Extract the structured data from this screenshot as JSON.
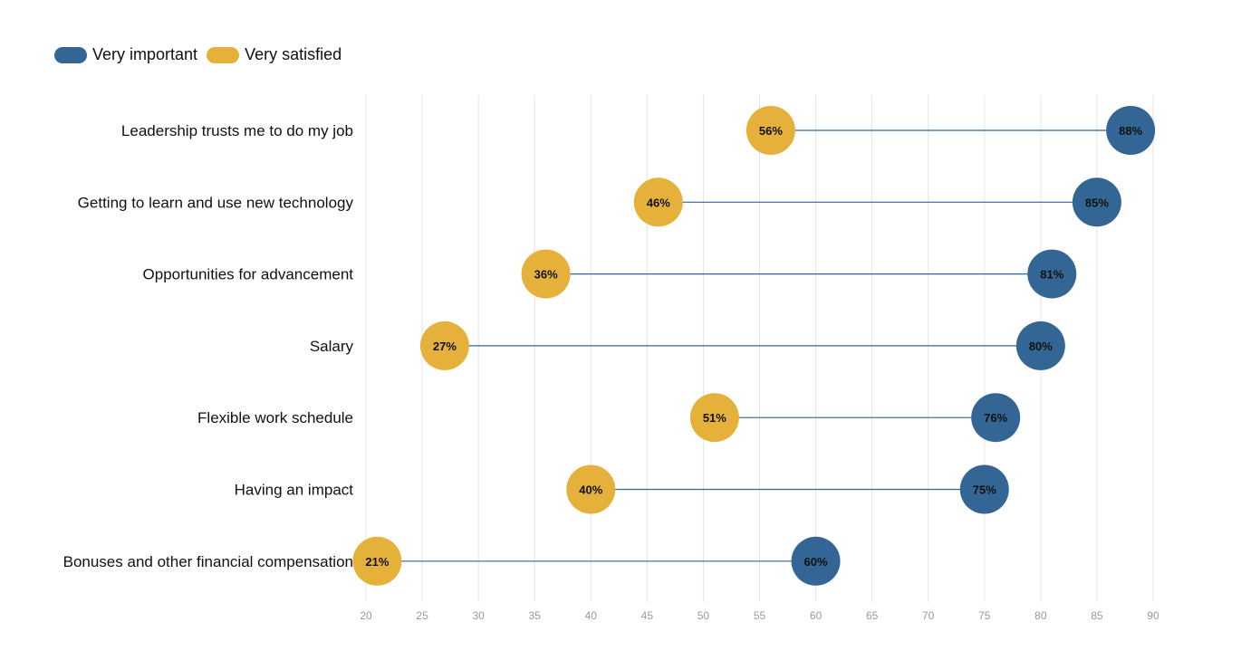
{
  "legend": {
    "important_label": "Very important",
    "satisfied_label": "Very satisfied"
  },
  "colors": {
    "important": "#336694",
    "satisfied": "#E6B13B",
    "connector": "#336694",
    "grid": "#e4e4e4"
  },
  "chart_data": {
    "type": "dumbbell",
    "title": "",
    "xlabel": "",
    "ylabel": "",
    "xlim": [
      20,
      90
    ],
    "xticks": [
      20,
      25,
      30,
      35,
      40,
      45,
      50,
      55,
      60,
      65,
      70,
      75,
      80,
      85,
      90
    ],
    "grid": "vertical",
    "legend_position": "top-left",
    "categories": [
      "Leadership trusts me to do my job",
      "Getting to learn and use new technology",
      "Opportunities for advancement",
      "Salary",
      "Flexible work schedule",
      "Having an impact",
      "Bonuses and other financial compensation"
    ],
    "series": [
      {
        "name": "Very important",
        "values": [
          88,
          85,
          81,
          80,
          76,
          75,
          60
        ],
        "labels": [
          "88%",
          "85%",
          "81%",
          "80%",
          "76%",
          "75%",
          "60%"
        ]
      },
      {
        "name": "Very satisfied",
        "values": [
          56,
          46,
          36,
          27,
          51,
          40,
          21
        ],
        "labels": [
          "56%",
          "46%",
          "36%",
          "27%",
          "51%",
          "40%",
          "21%"
        ]
      }
    ]
  }
}
